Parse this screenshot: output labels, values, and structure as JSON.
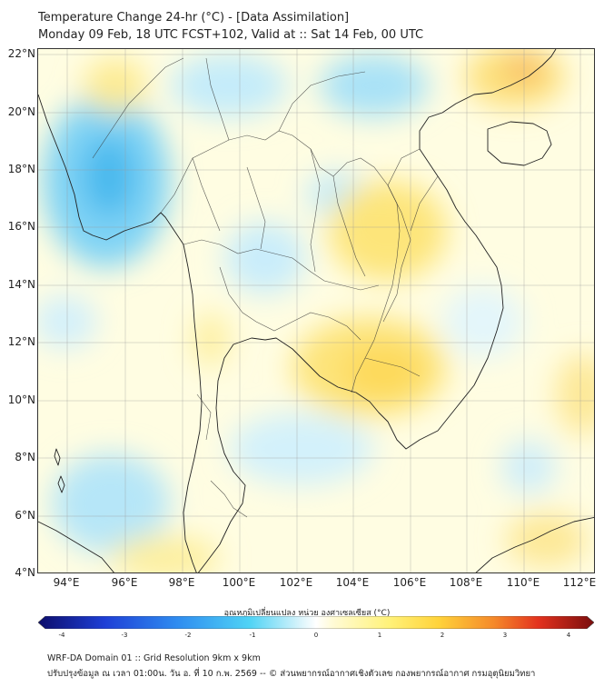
{
  "header": {
    "title": "Temperature Change 24-hr (°C) - [Data Assimilation]",
    "subtitle": "Monday 09 Feb, 18 UTC FCST+102, Valid at :: Sat 14 Feb, 00 UTC"
  },
  "map": {
    "lat_labels": [
      "22°N",
      "20°N",
      "18°N",
      "16°N",
      "14°N",
      "12°N",
      "10°N",
      "8°N",
      "6°N",
      "4°N"
    ],
    "lon_labels": [
      "94°E",
      "96°E",
      "98°E",
      "100°E",
      "102°E",
      "104°E",
      "106°E",
      "108°E",
      "110°E",
      "112°E"
    ]
  },
  "colorbar": {
    "title": "อุณหภูมิเปลี่ยนแปลง หน่วย องศาเซลเซียส (°C)",
    "ticks": [
      "-4",
      "-3",
      "-2",
      "-1",
      "0",
      "1",
      "2",
      "3",
      "4"
    ],
    "colors": {
      "cold": "#1a237e",
      "cool": "#29b6f6",
      "neutral": "#ffffff",
      "warm": "#ffeb3b",
      "hot": "#b71c1c"
    }
  },
  "footer": {
    "line1": "WRF-DA Domain 01 :: Grid Resolution 9km x 9km",
    "line2": "ปรับปรุงข้อมูล ณ เวลา 01:00น. วัน อ. ที่ 10 ก.พ. 2569 -- © ส่วนพยากรณ์อากาศเชิงตัวเลข กองพยากรณ์อากาศ กรมอุตุนิยมวิทยา"
  }
}
